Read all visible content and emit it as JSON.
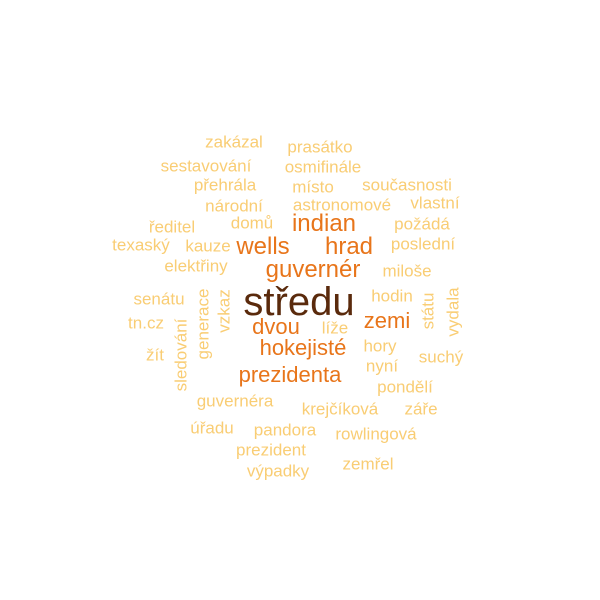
{
  "palette": {
    "c1": "#5a2a0c",
    "c2": "#e8751a",
    "c3": "#f2a83c",
    "c4": "#f9cd74"
  },
  "words": [
    {
      "key": "stredu",
      "text": "středu",
      "tier": "c1",
      "vertical": false
    },
    {
      "key": "indian",
      "text": "indian",
      "tier": "c2",
      "vertical": false
    },
    {
      "key": "wells",
      "text": "wells",
      "tier": "c2",
      "vertical": false
    },
    {
      "key": "hrad",
      "text": "hrad",
      "tier": "c2",
      "vertical": false
    },
    {
      "key": "guverner",
      "text": "guvernér",
      "tier": "c2",
      "vertical": false
    },
    {
      "key": "dvou",
      "text": "dvou",
      "tier": "c2",
      "vertical": false
    },
    {
      "key": "zemi",
      "text": "zemi",
      "tier": "c2",
      "vertical": false
    },
    {
      "key": "hokejiste",
      "text": "hokejisté",
      "tier": "c2",
      "vertical": false
    },
    {
      "key": "prezidenta",
      "text": "prezidenta",
      "tier": "c2",
      "vertical": false
    },
    {
      "key": "zakazal",
      "text": "zakázal",
      "tier": "c4",
      "vertical": false
    },
    {
      "key": "prasatko",
      "text": "prasátko",
      "tier": "c4",
      "vertical": false
    },
    {
      "key": "sestavovani",
      "text": "sestavování",
      "tier": "c4",
      "vertical": false
    },
    {
      "key": "osmifinale",
      "text": "osmifinále",
      "tier": "c4",
      "vertical": false
    },
    {
      "key": "prehrala",
      "text": "přehrála",
      "tier": "c4",
      "vertical": false
    },
    {
      "key": "misto",
      "text": "místo",
      "tier": "c4",
      "vertical": false
    },
    {
      "key": "soucasnosti",
      "text": "současnosti",
      "tier": "c4",
      "vertical": false
    },
    {
      "key": "narodni",
      "text": "národní",
      "tier": "c4",
      "vertical": false
    },
    {
      "key": "astronomove",
      "text": "astronomové",
      "tier": "c4",
      "vertical": false
    },
    {
      "key": "vlastni",
      "text": "vlastní",
      "tier": "c4",
      "vertical": false
    },
    {
      "key": "reditel",
      "text": "ředitel",
      "tier": "c4",
      "vertical": false
    },
    {
      "key": "domu",
      "text": "domů",
      "tier": "c4",
      "vertical": false
    },
    {
      "key": "pozada",
      "text": "požádá",
      "tier": "c4",
      "vertical": false
    },
    {
      "key": "texasky",
      "text": "texaský",
      "tier": "c4",
      "vertical": false
    },
    {
      "key": "kauze",
      "text": "kauze",
      "tier": "c4",
      "vertical": false
    },
    {
      "key": "posledni",
      "text": "poslední",
      "tier": "c4",
      "vertical": false
    },
    {
      "key": "elektriny",
      "text": "elektřiny",
      "tier": "c4",
      "vertical": false
    },
    {
      "key": "milose",
      "text": "miloše",
      "tier": "c4",
      "vertical": false
    },
    {
      "key": "senatu",
      "text": "senátu",
      "tier": "c4",
      "vertical": false
    },
    {
      "key": "generace",
      "text": "generace",
      "tier": "c4",
      "vertical": true
    },
    {
      "key": "vzkaz",
      "text": "vzkaz",
      "tier": "c4",
      "vertical": true
    },
    {
      "key": "hodin",
      "text": "hodin",
      "tier": "c4",
      "vertical": false
    },
    {
      "key": "statu",
      "text": "státu",
      "tier": "c4",
      "vertical": true
    },
    {
      "key": "vydala",
      "text": "vydala",
      "tier": "c4",
      "vertical": true
    },
    {
      "key": "tncz",
      "text": "tn.cz",
      "tier": "c4",
      "vertical": false
    },
    {
      "key": "lize",
      "text": "líže",
      "tier": "c4",
      "vertical": false
    },
    {
      "key": "sledovani",
      "text": "sledování",
      "tier": "c4",
      "vertical": true
    },
    {
      "key": "zit",
      "text": "žít",
      "tier": "c4",
      "vertical": false
    },
    {
      "key": "hory",
      "text": "hory",
      "tier": "c4",
      "vertical": false
    },
    {
      "key": "nyni",
      "text": "nyní",
      "tier": "c4",
      "vertical": false
    },
    {
      "key": "suchy",
      "text": "suchý",
      "tier": "c4",
      "vertical": false
    },
    {
      "key": "pondeli",
      "text": "pondělí",
      "tier": "c4",
      "vertical": false
    },
    {
      "key": "guvernera",
      "text": "guvernéra",
      "tier": "c4",
      "vertical": false
    },
    {
      "key": "krejcikova",
      "text": "krejčíková",
      "tier": "c4",
      "vertical": false
    },
    {
      "key": "zare",
      "text": "záře",
      "tier": "c4",
      "vertical": false
    },
    {
      "key": "uradu",
      "text": "úřadu",
      "tier": "c4",
      "vertical": false
    },
    {
      "key": "pandora",
      "text": "pandora",
      "tier": "c4",
      "vertical": false
    },
    {
      "key": "rowlingova",
      "text": "rowlingová",
      "tier": "c4",
      "vertical": false
    },
    {
      "key": "prezident",
      "text": "prezident",
      "tier": "c4",
      "vertical": false
    },
    {
      "key": "zemrel",
      "text": "zemřel",
      "tier": "c4",
      "vertical": false
    },
    {
      "key": "vypadky",
      "text": "výpadky",
      "tier": "c4",
      "vertical": false
    }
  ]
}
